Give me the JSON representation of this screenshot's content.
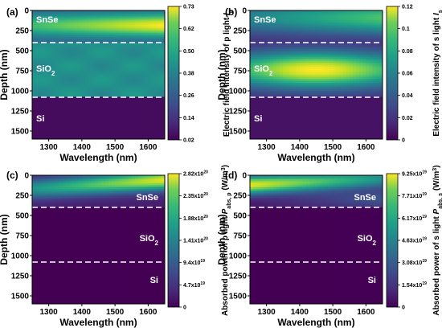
{
  "chart_data": [
    {
      "type": "heatmap",
      "panel_label": "(a)",
      "xlabel": "Wavelength (nm)",
      "ylabel": "Depth (nm)",
      "xlim": [
        1250,
        1650
      ],
      "ylim": [
        0,
        1600
      ],
      "y_inverted": true,
      "xticks": [
        "1300",
        "1400",
        "1500",
        "1600"
      ],
      "yticks": [
        "0",
        "250",
        "500",
        "750",
        "1000",
        "1250",
        "1500"
      ],
      "colorbar": {
        "label_main": "Electric field intensity of p light",
        "label_var": "I",
        "label_sub": "p",
        "ticks": [
          "0.73",
          "0.62",
          "0.50",
          "0.38",
          "0.26",
          "0.14",
          "0.02"
        ],
        "range": [
          0.02,
          0.73
        ],
        "colormap": "viridis"
      },
      "interfaces_nm": [
        400,
        1080
      ],
      "layers": [
        {
          "name": "SnSe",
          "sub": "",
          "from": 0,
          "to": 400
        },
        {
          "name": "SiO",
          "sub": "2",
          "from": 400,
          "to": 1080
        },
        {
          "name": "Si",
          "sub": "",
          "from": 1080,
          "to": 1600
        }
      ]
    },
    {
      "type": "heatmap",
      "panel_label": "(b)",
      "xlabel": "Wavelength (nm)",
      "ylabel": "Depth (nm)",
      "xlim": [
        1250,
        1650
      ],
      "ylim": [
        0,
        1600
      ],
      "y_inverted": true,
      "xticks": [
        "1300",
        "1400",
        "1500",
        "1600"
      ],
      "yticks": [
        "0",
        "250",
        "500",
        "750",
        "1000",
        "1250",
        "1500"
      ],
      "colorbar": {
        "label_main": "Electric field intensity of s light",
        "label_var": "I",
        "label_sub": "s",
        "ticks": [
          "0.12",
          "0.1",
          "0.08",
          "0.06",
          "0.04",
          "0.02",
          "0"
        ],
        "range": [
          0,
          0.12
        ],
        "colormap": "viridis"
      },
      "interfaces_nm": [
        400,
        1080
      ],
      "layers": [
        {
          "name": "SnSe",
          "sub": "",
          "from": 0,
          "to": 400
        },
        {
          "name": "SiO",
          "sub": "2",
          "from": 400,
          "to": 1080
        },
        {
          "name": "Si",
          "sub": "",
          "from": 1080,
          "to": 1600
        }
      ]
    },
    {
      "type": "heatmap",
      "panel_label": "(c)",
      "xlabel": "Wavelength (nm)",
      "ylabel": "Depth (nm)",
      "xlim": [
        1250,
        1650
      ],
      "ylim": [
        0,
        1600
      ],
      "y_inverted": true,
      "xticks": [
        "1300",
        "1400",
        "1500",
        "1600"
      ],
      "yticks": [
        "0",
        "250",
        "500",
        "750",
        "1000",
        "1250",
        "1500"
      ],
      "colorbar": {
        "label_main": "Absorbed power of p light",
        "label_var": "P",
        "label_sub": "abs, p",
        "label_unit": "(W/m",
        "label_unit_sup": "3",
        "label_unit_end": ")",
        "ticks": [
          {
            "m": "2.82x10",
            "e": "20"
          },
          {
            "m": "2.35x10",
            "e": "20"
          },
          {
            "m": "1.88x10",
            "e": "20"
          },
          {
            "m": "1.41x10",
            "e": "20"
          },
          {
            "m": "9.4x10",
            "e": "19"
          },
          {
            "m": "4.7x10",
            "e": "19"
          },
          {
            "m": "0",
            "e": ""
          }
        ],
        "range": [
          0,
          2.82e+20
        ],
        "colormap": "viridis"
      },
      "interfaces_nm": [
        400,
        1080
      ],
      "layers": [
        {
          "name": "SnSe",
          "sub": "",
          "from": 0,
          "to": 400
        },
        {
          "name": "SiO",
          "sub": "2",
          "from": 400,
          "to": 1080
        },
        {
          "name": "Si",
          "sub": "",
          "from": 1080,
          "to": 1600
        }
      ]
    },
    {
      "type": "heatmap",
      "panel_label": "(d)",
      "xlabel": "Wavelength (nm)",
      "ylabel": "Depth (nm)",
      "xlim": [
        1250,
        1650
      ],
      "ylim": [
        0,
        1600
      ],
      "y_inverted": true,
      "xticks": [
        "1300",
        "1400",
        "1500",
        "1600"
      ],
      "yticks": [
        "0",
        "250",
        "500",
        "750",
        "1000",
        "1250",
        "1500"
      ],
      "colorbar": {
        "label_main": "Absorbed power of s light",
        "label_var": "P",
        "label_sub": "abs, s",
        "label_unit": "(W/m",
        "label_unit_sup": "3",
        "label_unit_end": ")",
        "ticks": [
          {
            "m": "9.25x10",
            "e": "19"
          },
          {
            "m": "7.71x10",
            "e": "19"
          },
          {
            "m": "6.17x10",
            "e": "19"
          },
          {
            "m": "4.63x10",
            "e": "19"
          },
          {
            "m": "3.08x10",
            "e": "19"
          },
          {
            "m": "1.54x10",
            "e": "19"
          },
          {
            "m": "0",
            "e": ""
          }
        ],
        "range": [
          0,
          9.25e+19
        ],
        "colormap": "viridis"
      },
      "interfaces_nm": [
        400,
        1080
      ],
      "layers": [
        {
          "name": "SnSe",
          "sub": "",
          "from": 0,
          "to": 400
        },
        {
          "name": "SiO",
          "sub": "2",
          "from": 400,
          "to": 1080
        },
        {
          "name": "Si",
          "sub": "",
          "from": 1080,
          "to": 1600
        }
      ]
    }
  ]
}
